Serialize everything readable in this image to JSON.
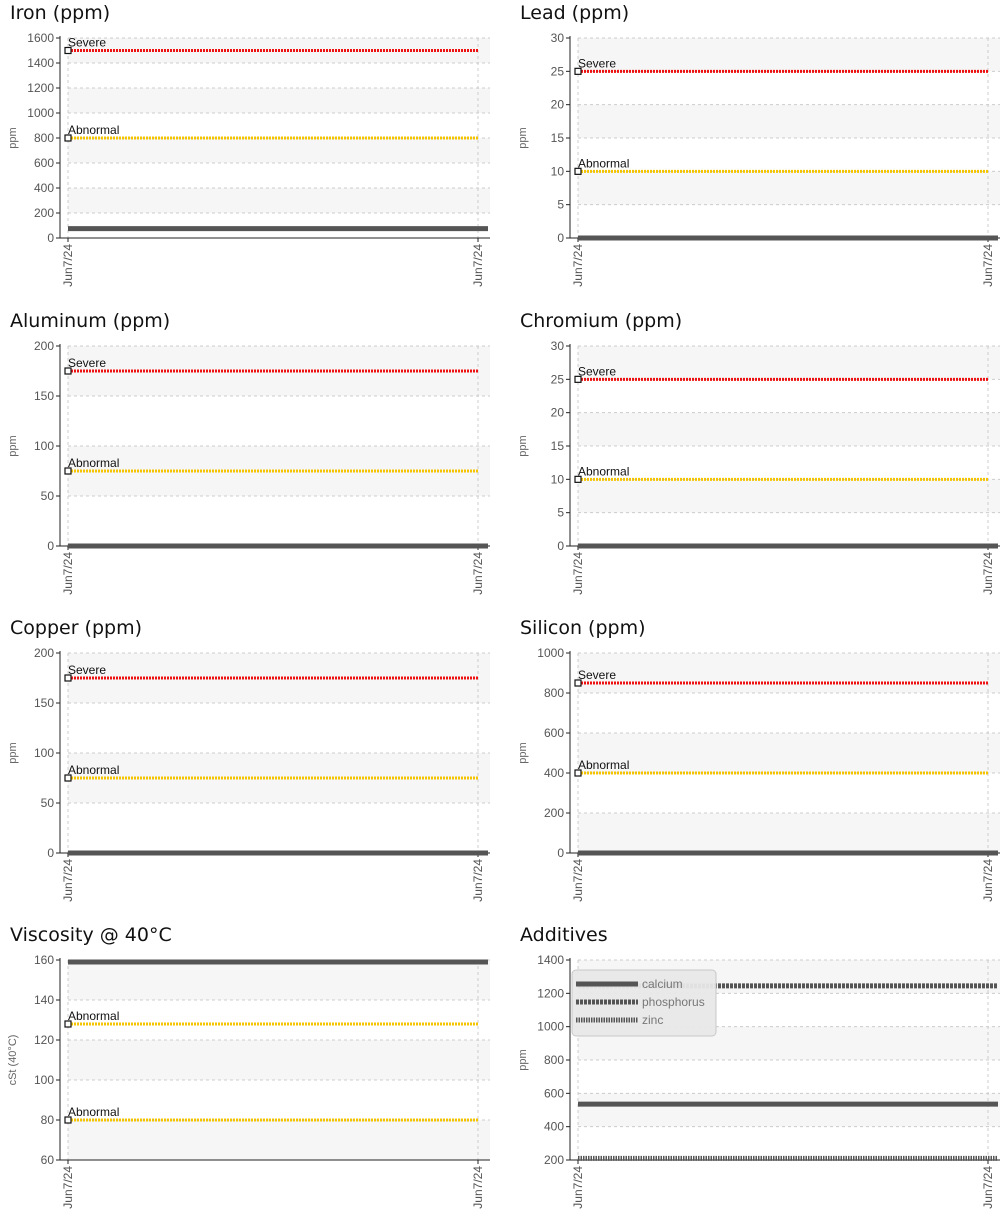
{
  "colors": {
    "severe": "#ee1111",
    "abnormal": "#f5c400",
    "data": "#555555",
    "band": "#f6f6f6",
    "grid": "#cccccc",
    "axis": "#222222"
  },
  "chart_data": [
    {
      "id": "iron",
      "title": "Iron (ppm)",
      "type": "line",
      "ylabel": "ppm",
      "ylim": [
        0,
        1600
      ],
      "yticks": [
        0,
        200,
        400,
        600,
        800,
        1000,
        1200,
        1400,
        1600
      ],
      "x": [
        "Jun7/24",
        "Jun7/24"
      ],
      "reference_lines": [
        {
          "label": "Severe",
          "value": 1500,
          "level": "severe"
        },
        {
          "label": "Abnormal",
          "value": 800,
          "level": "abnormal"
        }
      ],
      "series": [
        {
          "values": [
            75,
            75
          ],
          "style": "solid"
        }
      ],
      "grid": true
    },
    {
      "id": "lead",
      "title": "Lead (ppm)",
      "type": "line",
      "ylabel": "ppm",
      "ylim": [
        0,
        30
      ],
      "yticks": [
        0,
        5,
        10,
        15,
        20,
        25,
        30
      ],
      "x": [
        "Jun7/24",
        "Jun7/24"
      ],
      "reference_lines": [
        {
          "label": "Severe",
          "value": 25,
          "level": "severe"
        },
        {
          "label": "Abnormal",
          "value": 10,
          "level": "abnormal"
        }
      ],
      "series": [
        {
          "values": [
            0,
            0
          ],
          "style": "solid"
        }
      ],
      "grid": true
    },
    {
      "id": "aluminum",
      "title": "Aluminum (ppm)",
      "type": "line",
      "ylabel": "ppm",
      "ylim": [
        0,
        200
      ],
      "yticks": [
        0,
        50,
        100,
        150,
        200
      ],
      "x": [
        "Jun7/24",
        "Jun7/24"
      ],
      "reference_lines": [
        {
          "label": "Severe",
          "value": 175,
          "level": "severe"
        },
        {
          "label": "Abnormal",
          "value": 75,
          "level": "abnormal"
        }
      ],
      "series": [
        {
          "values": [
            0,
            0
          ],
          "style": "solid"
        }
      ],
      "grid": true
    },
    {
      "id": "chromium",
      "title": "Chromium (ppm)",
      "type": "line",
      "ylabel": "ppm",
      "ylim": [
        0,
        30
      ],
      "yticks": [
        0,
        5,
        10,
        15,
        20,
        25,
        30
      ],
      "x": [
        "Jun7/24",
        "Jun7/24"
      ],
      "reference_lines": [
        {
          "label": "Severe",
          "value": 25,
          "level": "severe"
        },
        {
          "label": "Abnormal",
          "value": 10,
          "level": "abnormal"
        }
      ],
      "series": [
        {
          "values": [
            0,
            0
          ],
          "style": "solid"
        }
      ],
      "grid": true
    },
    {
      "id": "copper",
      "title": "Copper (ppm)",
      "type": "line",
      "ylabel": "ppm",
      "ylim": [
        0,
        200
      ],
      "yticks": [
        0,
        50,
        100,
        150,
        200
      ],
      "x": [
        "Jun7/24",
        "Jun7/24"
      ],
      "reference_lines": [
        {
          "label": "Severe",
          "value": 175,
          "level": "severe"
        },
        {
          "label": "Abnormal",
          "value": 75,
          "level": "abnormal"
        }
      ],
      "series": [
        {
          "values": [
            0,
            0
          ],
          "style": "solid"
        }
      ],
      "grid": true
    },
    {
      "id": "silicon",
      "title": "Silicon (ppm)",
      "type": "line",
      "ylabel": "ppm",
      "ylim": [
        0,
        1000
      ],
      "yticks": [
        0,
        200,
        400,
        600,
        800,
        1000
      ],
      "x": [
        "Jun7/24",
        "Jun7/24"
      ],
      "reference_lines": [
        {
          "label": "Severe",
          "value": 850,
          "level": "severe"
        },
        {
          "label": "Abnormal",
          "value": 400,
          "level": "abnormal"
        }
      ],
      "series": [
        {
          "values": [
            0,
            0
          ],
          "style": "solid"
        }
      ],
      "grid": true
    },
    {
      "id": "viscosity",
      "title": "Viscosity @ 40°C",
      "type": "line",
      "ylabel": "cSt (40°C)",
      "ylim": [
        60,
        160
      ],
      "yticks": [
        60,
        80,
        100,
        120,
        140,
        160
      ],
      "x": [
        "Jun7/24",
        "Jun7/24"
      ],
      "reference_lines": [
        {
          "label": "Abnormal",
          "value": 128,
          "level": "abnormal"
        },
        {
          "label": "Abnormal",
          "value": 80,
          "level": "abnormal"
        }
      ],
      "series": [
        {
          "values": [
            159,
            159
          ],
          "style": "solid"
        }
      ],
      "grid": true
    },
    {
      "id": "additives",
      "title": "Additives",
      "type": "line",
      "ylabel": "ppm",
      "ylim": [
        200,
        1400
      ],
      "yticks": [
        200,
        400,
        600,
        800,
        1000,
        1200,
        1400
      ],
      "x": [
        "Jun7/24",
        "Jun7/24"
      ],
      "reference_lines": [],
      "series": [
        {
          "name": "calcium",
          "values": [
            535,
            535
          ],
          "style": "solid"
        },
        {
          "name": "phosphorus",
          "values": [
            1245,
            1245
          ],
          "style": "dashed"
        },
        {
          "name": "zinc",
          "values": [
            210,
            210
          ],
          "style": "dotted"
        }
      ],
      "legend": "top-left",
      "grid": true
    }
  ]
}
